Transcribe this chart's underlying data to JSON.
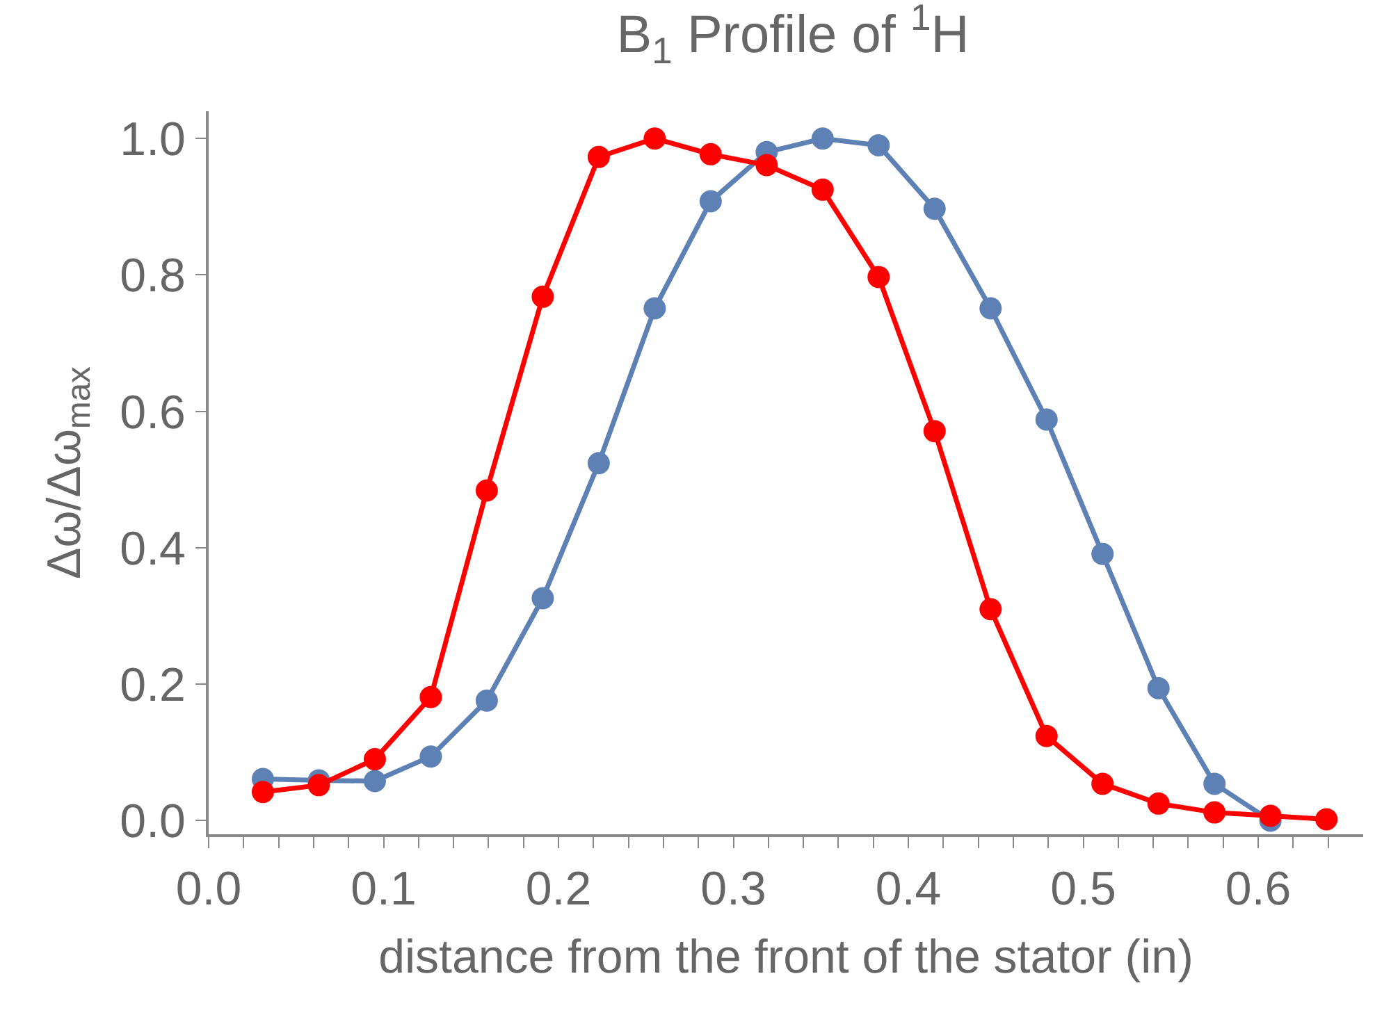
{
  "chart_data": {
    "type": "line",
    "title": "B$_{1}$ Profile of $^{1}$H",
    "xlabel": "distance from the front of the stator (in)",
    "ylabel": "Δω/Δω$_{max}$",
    "x": [
      0.031,
      0.063,
      0.095,
      0.127,
      0.159,
      0.191,
      0.223,
      0.255,
      0.287,
      0.319,
      0.351,
      0.383,
      0.415,
      0.447,
      0.479,
      0.511,
      0.543,
      0.575,
      0.607,
      0.639
    ],
    "series": [
      {
        "color": "#5e81b5",
        "values": [
          0.061,
          0.059,
          0.058,
          0.094,
          0.176,
          0.326,
          0.524,
          0.751,
          0.908,
          0.98,
          1.0,
          0.99,
          0.897,
          0.751,
          0.588,
          0.391,
          0.194,
          0.054,
          0.0,
          null
        ]
      },
      {
        "color": "#ff0000",
        "values": [
          0.042,
          0.052,
          0.09,
          0.181,
          0.484,
          0.768,
          0.973,
          1.0,
          0.977,
          0.961,
          0.925,
          0.797,
          0.571,
          0.31,
          0.124,
          0.054,
          0.025,
          0.012,
          0.007,
          0.002
        ]
      }
    ],
    "xlim": [
      0,
      0.66
    ],
    "ylim": [
      -0.02,
      1.04
    ],
    "xticks": [
      {
        "value": 0.0,
        "label": "0.0"
      },
      {
        "value": 0.02,
        "label": null
      },
      {
        "value": 0.04,
        "label": null
      },
      {
        "value": 0.06,
        "label": null
      },
      {
        "value": 0.08,
        "label": null
      },
      {
        "value": 0.1,
        "label": "0.1"
      },
      {
        "value": 0.12,
        "label": null
      },
      {
        "value": 0.14,
        "label": null
      },
      {
        "value": 0.16,
        "label": null
      },
      {
        "value": 0.18,
        "label": null
      },
      {
        "value": 0.2,
        "label": "0.2"
      },
      {
        "value": 0.22,
        "label": null
      },
      {
        "value": 0.24,
        "label": null
      },
      {
        "value": 0.26,
        "label": null
      },
      {
        "value": 0.28,
        "label": null
      },
      {
        "value": 0.3,
        "label": "0.3"
      },
      {
        "value": 0.32,
        "label": null
      },
      {
        "value": 0.34,
        "label": null
      },
      {
        "value": 0.36,
        "label": null
      },
      {
        "value": 0.38,
        "label": null
      },
      {
        "value": 0.4,
        "label": "0.4"
      },
      {
        "value": 0.42,
        "label": null
      },
      {
        "value": 0.44,
        "label": null
      },
      {
        "value": 0.46,
        "label": null
      },
      {
        "value": 0.48,
        "label": null
      },
      {
        "value": 0.5,
        "label": "0.5"
      },
      {
        "value": 0.52,
        "label": null
      },
      {
        "value": 0.54,
        "label": null
      },
      {
        "value": 0.56,
        "label": null
      },
      {
        "value": 0.58,
        "label": null
      },
      {
        "value": 0.6,
        "label": "0.6"
      },
      {
        "value": 0.62,
        "label": null
      },
      {
        "value": 0.64,
        "label": null
      }
    ],
    "yticks": [
      {
        "value": 0.0,
        "label": "0.0"
      },
      {
        "value": 0.2,
        "label": "0.2"
      },
      {
        "value": 0.4,
        "label": "0.4"
      },
      {
        "value": 0.6,
        "label": "0.6"
      },
      {
        "value": 0.8,
        "label": "0.8"
      },
      {
        "value": 1.0,
        "label": "1.0"
      }
    ],
    "grid": false,
    "marker": "circle",
    "line_style": "solid"
  }
}
